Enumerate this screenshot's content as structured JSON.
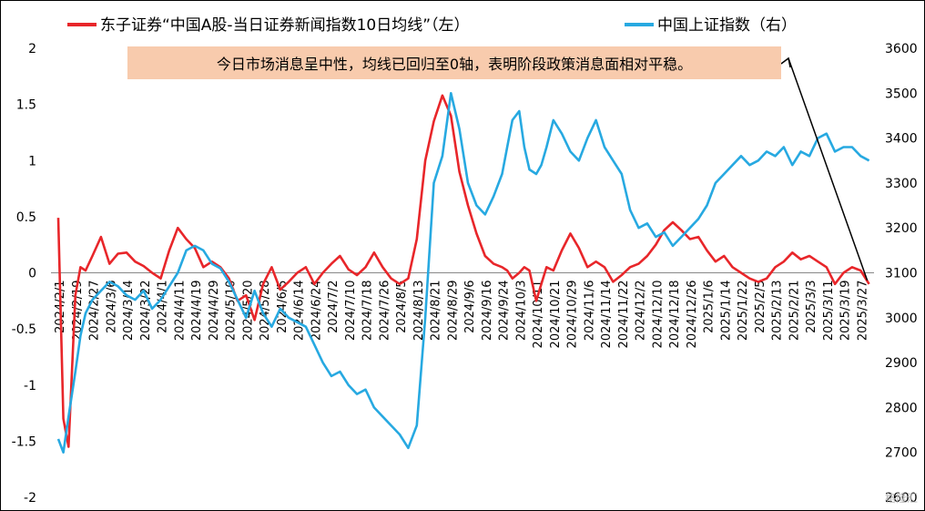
{
  "chart_data": {
    "type": "line",
    "legend": [
      {
        "name": "东子证券“中国A股-当日证券新闻指数10日均线”（左）",
        "color": "#e8262a"
      },
      {
        "name": "中国上证指数（右）",
        "color": "#27a9e1"
      }
    ],
    "annotation": "今日市场消息呈中性，均线已回归至0轴，表明阶段政策消息面相对平稳。",
    "left_axis": {
      "ylim": [
        -2,
        2
      ],
      "ticks": [
        "2",
        "1.5",
        "1",
        "0.5",
        "0",
        "-0.5",
        "-1",
        "-1.5",
        "-2"
      ],
      "tick_values": [
        2,
        1.5,
        1,
        0.5,
        0,
        -0.5,
        -1,
        -1.5,
        -2
      ]
    },
    "right_axis": {
      "ylim": [
        2600,
        3600
      ],
      "ticks": [
        "3600",
        "3500",
        "3400",
        "3300",
        "3200",
        "3100",
        "3000",
        "2900",
        "2800",
        "2700",
        "2600"
      ],
      "tick_values": [
        3600,
        3500,
        3400,
        3300,
        3200,
        3100,
        3000,
        2900,
        2800,
        2700,
        2600
      ]
    },
    "x_ticks": [
      "2024/2/1",
      "2024/2/19",
      "2024/2/27",
      "2024/3/6",
      "2024/3/14",
      "2024/3/22",
      "2024/4/1",
      "2024/4/11",
      "2024/4/19",
      "2024/4/29",
      "2024/5/10",
      "2024/5/20",
      "2024/5/28",
      "2024/6/5",
      "2024/6/14",
      "2024/6/24",
      "2024/7/2",
      "2024/7/10",
      "2024/7/18",
      "2024/7/26",
      "2024/8/5",
      "2024/8/13",
      "2024/8/21",
      "2024/8/29",
      "2024/9/6",
      "2024/9/16",
      "2024/9/24",
      "2024/10/3",
      "2024/10/11",
      "2024/10/21",
      "2024/10/29",
      "2024/11/6",
      "2024/11/14",
      "2024/11/22",
      "2024/12/2",
      "2024/12/10",
      "2024/12/18",
      "2024/12/26",
      "2025/1/6",
      "2025/1/14",
      "2025/1/22",
      "2025/2/5",
      "2025/2/13",
      "2025/2/21",
      "2025/3/3",
      "2025/3/11",
      "2025/3/19",
      "2025/3/27"
    ],
    "series": [
      {
        "name": "东子证券“中国A股-当日证券新闻指数10日均线”（左）",
        "axis": "left",
        "color": "#e8262a",
        "x": [
          0,
          0.3,
          0.6,
          1,
          1.3,
          1.6,
          2,
          2.5,
          3,
          3.5,
          4,
          4.5,
          5,
          5.5,
          6,
          6.5,
          7,
          7.5,
          8,
          8.5,
          9,
          9.5,
          10,
          10.5,
          11,
          11.5,
          12,
          12.5,
          13,
          13.5,
          14,
          14.5,
          15,
          15.5,
          16,
          16.5,
          17,
          17.5,
          18,
          18.5,
          19,
          19.5,
          20,
          20.5,
          21,
          21.5,
          22,
          22.5,
          23,
          23.5,
          24,
          24.5,
          25,
          25.5,
          26,
          26.3,
          26.6,
          27,
          27.3,
          27.6,
          28,
          28.3,
          28.6,
          29,
          29.5,
          30,
          30.5,
          31,
          31.5,
          32,
          32.5,
          33,
          33.5,
          34,
          34.5,
          35,
          35.5,
          36,
          36.5,
          37,
          37.5,
          38,
          38.5,
          39,
          39.5,
          40,
          40.5,
          41,
          41.5,
          42,
          42.5,
          43,
          43.5,
          44,
          44.5,
          45,
          45.5,
          46,
          46.5,
          47,
          47.5
        ],
        "values": [
          0.49,
          -1.3,
          -1.55,
          -0.2,
          0.05,
          0.02,
          0.15,
          0.32,
          0.08,
          0.17,
          0.18,
          0.1,
          0.06,
          0.0,
          -0.05,
          0.2,
          0.4,
          0.3,
          0.22,
          0.05,
          0.1,
          0.05,
          -0.05,
          -0.25,
          -0.2,
          -0.42,
          -0.1,
          0.05,
          -0.15,
          -0.08,
          0.0,
          0.05,
          -0.1,
          0.0,
          0.08,
          0.15,
          0.03,
          -0.02,
          0.05,
          0.18,
          0.05,
          -0.05,
          -0.1,
          -0.05,
          0.3,
          1.0,
          1.35,
          1.58,
          1.4,
          0.9,
          0.6,
          0.35,
          0.15,
          0.08,
          0.05,
          0.02,
          -0.05,
          0.0,
          0.05,
          0.02,
          -0.25,
          -0.1,
          0.05,
          0.02,
          0.2,
          0.35,
          0.22,
          0.05,
          0.1,
          0.05,
          -0.08,
          -0.02,
          0.05,
          0.08,
          0.15,
          0.25,
          0.38,
          0.45,
          0.38,
          0.3,
          0.32,
          0.2,
          0.1,
          0.15,
          0.05,
          0.0,
          -0.05,
          -0.08,
          -0.05,
          0.05,
          0.1,
          0.18,
          0.12,
          0.15,
          0.1,
          0.05,
          -0.1,
          0.0,
          0.05,
          0.02,
          -0.1
        ]
      },
      {
        "name": "中国上证指数（右）",
        "axis": "right",
        "color": "#27a9e1",
        "x": [
          0,
          0.3,
          0.6,
          1,
          1.3,
          1.6,
          2,
          2.5,
          3,
          3.5,
          4,
          4.5,
          5,
          5.5,
          6,
          6.5,
          7,
          7.5,
          8,
          8.5,
          9,
          9.5,
          10,
          10.5,
          11,
          11.5,
          12,
          12.5,
          13,
          13.5,
          14,
          14.5,
          15,
          15.5,
          16,
          16.5,
          17,
          17.5,
          18,
          18.5,
          19,
          19.5,
          20,
          20.5,
          21,
          21.5,
          22,
          22.5,
          23,
          23.5,
          24,
          24.5,
          25,
          25.5,
          26,
          26.3,
          26.6,
          27,
          27.3,
          27.6,
          28,
          28.3,
          28.6,
          29,
          29.5,
          30,
          30.5,
          31,
          31.5,
          32,
          32.5,
          33,
          33.5,
          34,
          34.5,
          35,
          35.5,
          36,
          36.5,
          37,
          37.5,
          38,
          38.5,
          39,
          39.5,
          40,
          40.5,
          41,
          41.5,
          42,
          42.5,
          43,
          43.5,
          44,
          44.5,
          45,
          45.5,
          46,
          46.5,
          47,
          47.5
        ],
        "values": [
          2730,
          2700,
          2780,
          2880,
          2960,
          3010,
          3040,
          3060,
          3080,
          3070,
          3050,
          3040,
          3060,
          3020,
          3040,
          3070,
          3100,
          3150,
          3160,
          3150,
          3120,
          3110,
          3080,
          3040,
          3000,
          3060,
          3010,
          2980,
          3020,
          3000,
          2990,
          2980,
          2940,
          2900,
          2870,
          2880,
          2850,
          2830,
          2840,
          2800,
          2780,
          2760,
          2740,
          2710,
          2760,
          3000,
          3300,
          3360,
          3500,
          3420,
          3300,
          3250,
          3230,
          3270,
          3320,
          3380,
          3440,
          3460,
          3380,
          3330,
          3320,
          3340,
          3380,
          3440,
          3410,
          3370,
          3350,
          3400,
          3440,
          3380,
          3350,
          3320,
          3240,
          3200,
          3210,
          3180,
          3190,
          3160,
          3180,
          3200,
          3220,
          3250,
          3300,
          3320,
          3340,
          3360,
          3340,
          3350,
          3370,
          3360,
          3380,
          3340,
          3370,
          3360,
          3400,
          3410,
          3370,
          3380,
          3380,
          3360,
          3350
        ]
      }
    ]
  },
  "watermark": "格隆汇"
}
